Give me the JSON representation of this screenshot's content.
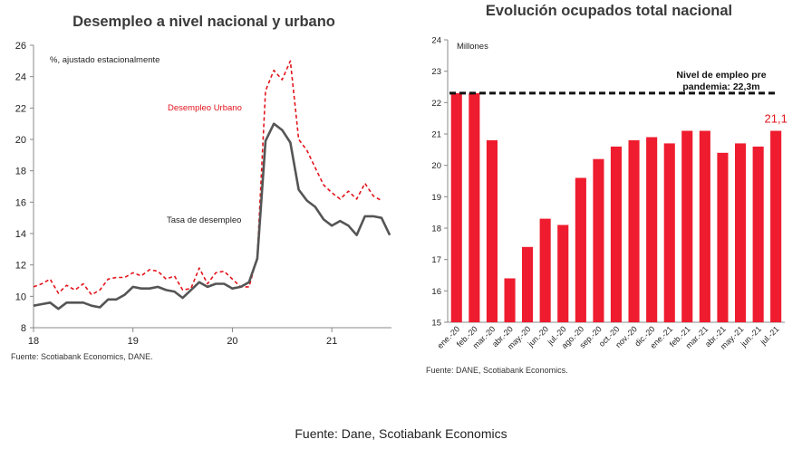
{
  "footer": {
    "text": "Fuente: Dane, Scotiabank Economics"
  },
  "chart_data": [
    {
      "type": "line",
      "title": "Desempleo a nivel nacional y urbano",
      "subtitle": "%, ajustado estacionalmente",
      "source": "Fuente: Scotiabank Economics, DANE.",
      "xlabel": "",
      "ylabel": "",
      "xlim": [
        18,
        21.6
      ],
      "ylim": [
        8,
        26
      ],
      "x_ticks": [
        18,
        19,
        20,
        21
      ],
      "y_ticks": [
        8,
        10,
        12,
        14,
        16,
        18,
        20,
        22,
        24,
        26
      ],
      "grid": false,
      "legend": "inline labels",
      "series": [
        {
          "name": "Desempleo Urbano",
          "color": "#e3141c",
          "style": "dashed",
          "x": [
            18.0,
            18.083,
            18.167,
            18.25,
            18.333,
            18.417,
            18.5,
            18.583,
            18.667,
            18.75,
            18.833,
            18.917,
            19.0,
            19.083,
            19.167,
            19.25,
            19.333,
            19.417,
            19.5,
            19.583,
            19.667,
            19.75,
            19.833,
            19.917,
            20.0,
            20.083,
            20.167,
            20.25,
            20.333,
            20.417,
            20.5,
            20.583,
            20.667,
            20.75,
            20.833,
            20.917,
            21.0,
            21.083,
            21.167,
            21.25,
            21.333,
            21.417,
            21.5
          ],
          "values": [
            10.6,
            10.8,
            11.1,
            10.2,
            10.7,
            10.4,
            10.8,
            10.1,
            10.4,
            11.1,
            11.2,
            11.2,
            11.5,
            11.3,
            11.7,
            11.6,
            11.1,
            11.3,
            10.4,
            10.5,
            11.8,
            10.8,
            11.5,
            11.6,
            11.1,
            10.6,
            10.6,
            12.5,
            23.1,
            24.4,
            23.8,
            25.0,
            20.0,
            19.3,
            18.2,
            17.1,
            16.6,
            16.2,
            16.7,
            16.2,
            17.2,
            16.4,
            16.1
          ]
        },
        {
          "name": "Tasa de desempleo",
          "color": "#555555",
          "style": "solid",
          "x": [
            18.0,
            18.083,
            18.167,
            18.25,
            18.333,
            18.417,
            18.5,
            18.583,
            18.667,
            18.75,
            18.833,
            18.917,
            19.0,
            19.083,
            19.167,
            19.25,
            19.333,
            19.417,
            19.5,
            19.583,
            19.667,
            19.75,
            19.833,
            19.917,
            20.0,
            20.083,
            20.167,
            20.25,
            20.333,
            20.417,
            20.5,
            20.583,
            20.667,
            20.75,
            20.833,
            20.917,
            21.0,
            21.083,
            21.167,
            21.25,
            21.333,
            21.417,
            21.5,
            21.583
          ],
          "values": [
            9.4,
            9.5,
            9.6,
            9.2,
            9.6,
            9.6,
            9.6,
            9.4,
            9.3,
            9.8,
            9.8,
            10.1,
            10.6,
            10.5,
            10.5,
            10.6,
            10.4,
            10.3,
            9.9,
            10.4,
            10.9,
            10.6,
            10.8,
            10.8,
            10.5,
            10.6,
            10.9,
            12.4,
            19.9,
            21.0,
            20.6,
            19.8,
            16.8,
            16.1,
            15.7,
            14.9,
            14.5,
            14.8,
            14.5,
            13.9,
            15.1,
            15.1,
            15.0,
            13.9
          ]
        }
      ]
    },
    {
      "type": "bar",
      "title": "Evolución ocupados total nacional",
      "subtitle": "Millones",
      "source": "Fuente: DANE, Scotiabank Economics.",
      "xlabel": "",
      "ylabel": "",
      "ylim": [
        15,
        24
      ],
      "y_ticks": [
        15,
        16,
        17,
        18,
        19,
        20,
        21,
        22,
        23,
        24
      ],
      "grid": false,
      "bar_color": "#ee1c2e",
      "categories": [
        "ene.-20",
        "feb.-20",
        "mar.-20",
        "abr.-20",
        "may.-20",
        "jun.-20",
        "jul.-20",
        "ago.-20",
        "sep.-20",
        "oct.-20",
        "nov.-20",
        "dic.-20",
        "ene.-21",
        "feb.-21",
        "mar.-21",
        "abr.-21",
        "may.-21",
        "jun.-21",
        "jul.-21"
      ],
      "values": [
        22.3,
        22.3,
        20.8,
        16.4,
        17.4,
        18.3,
        18.1,
        19.6,
        20.2,
        20.6,
        20.8,
        20.9,
        20.7,
        21.1,
        21.1,
        20.4,
        20.7,
        20.6,
        21.1
      ],
      "reference_line": {
        "value": 22.3,
        "label_line1": "Nivel de empleo pre",
        "label_line2": "pandemia: 22,3m"
      },
      "data_label": {
        "index": 18,
        "text": "21,1",
        "color": "#e3141c"
      }
    }
  ]
}
